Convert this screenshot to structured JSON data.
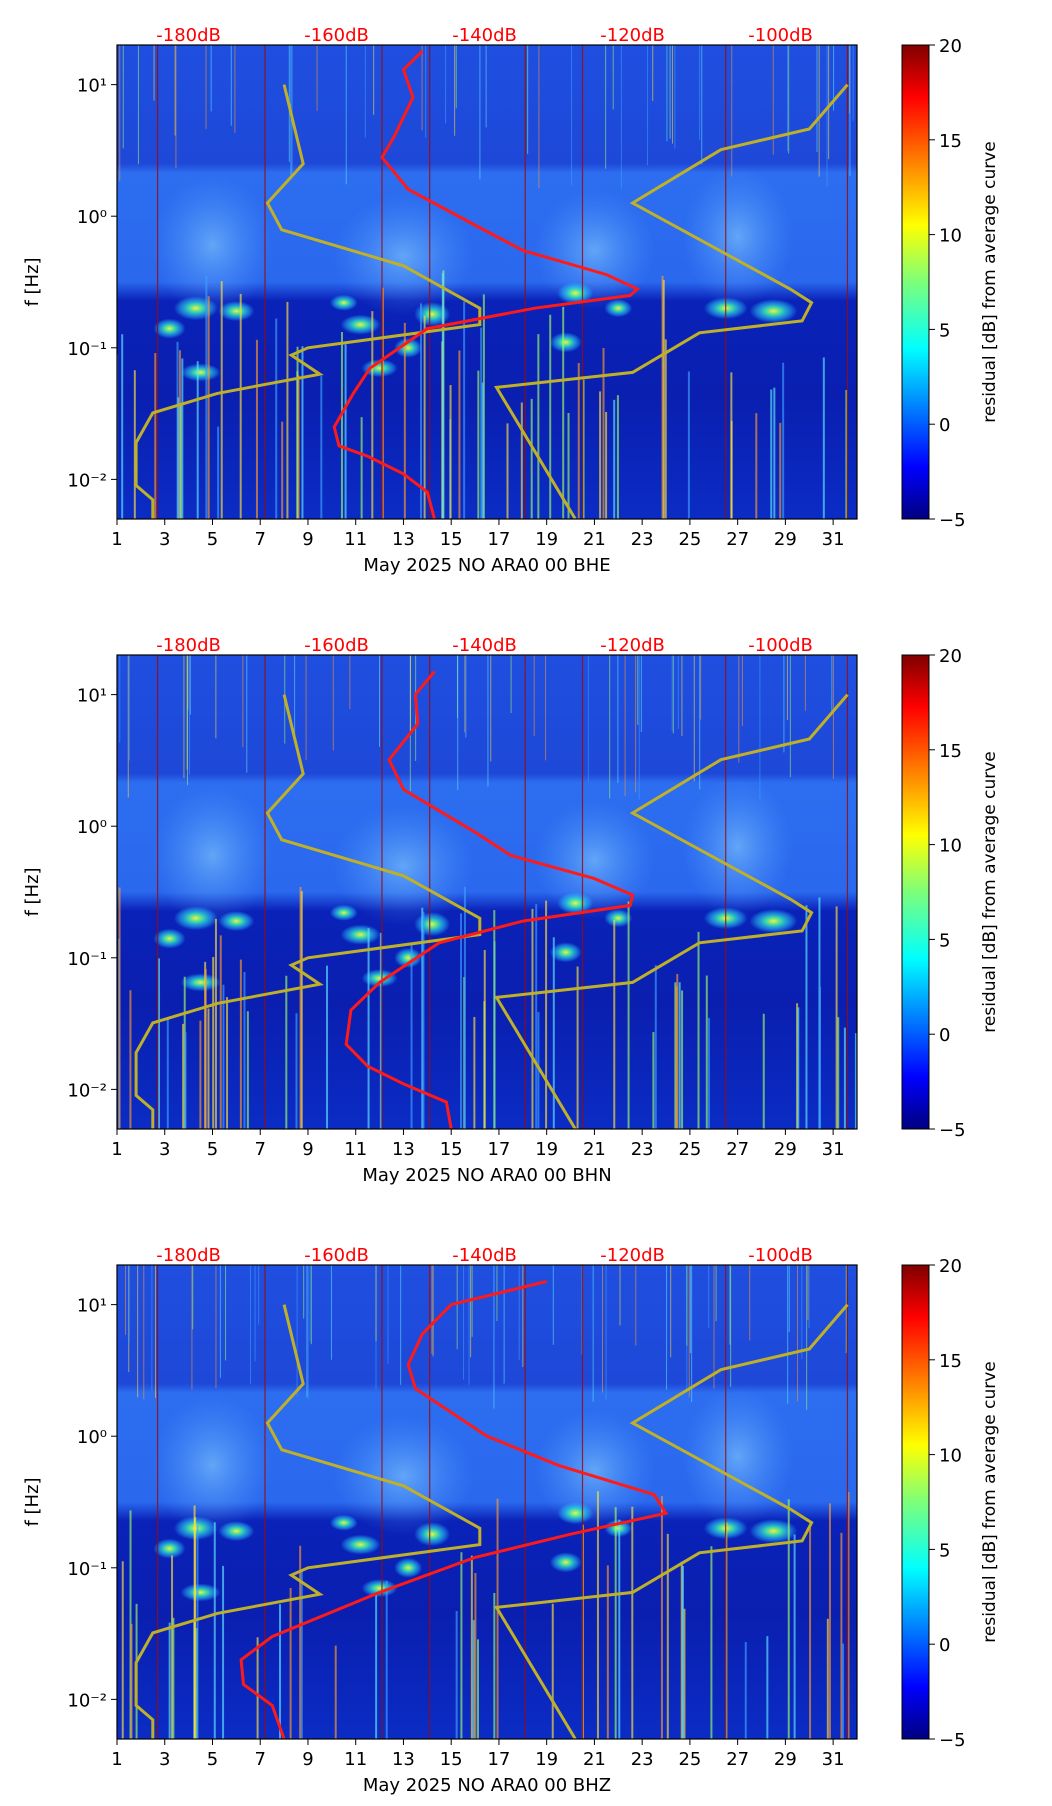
{
  "colors": {
    "db_scale": "#ff0000",
    "average_curve": "#ff1a1a",
    "reference_model": "#bfb02a",
    "colormap": "jet"
  },
  "colorbar": {
    "label": "residual [dB] from average curve",
    "min": -5,
    "max": 20,
    "ticks": [
      -5,
      0,
      5,
      10,
      15,
      20
    ],
    "tick_labels": [
      "−5",
      "0",
      "5",
      "10",
      "15",
      "20"
    ]
  },
  "chart_data": [
    {
      "type": "heatmap",
      "panel": "BHE",
      "xlabel": "May 2025 NO ARA0 00 BHE",
      "ylabel": "f [Hz]",
      "x_ticks": [
        1,
        3,
        5,
        7,
        9,
        11,
        13,
        15,
        17,
        19,
        21,
        23,
        25,
        27,
        29,
        31
      ],
      "x_tick_labels": [
        "1",
        "3",
        "5",
        "7",
        "9",
        "11",
        "13",
        "15",
        "17",
        "19",
        "21",
        "23",
        "25",
        "27",
        "29",
        "31"
      ],
      "xlim": [
        1,
        32
      ],
      "ylim_hz": [
        0.005,
        20
      ],
      "y_scale": "log",
      "y_ticks": [
        0.01,
        0.1,
        1,
        10
      ],
      "y_tick_labels": [
        "10⁻²",
        "10⁻¹",
        "10⁰",
        "10¹"
      ],
      "db_scale_labels": [
        "-180dB",
        "-160dB",
        "-140dB",
        "-120dB",
        "-100dB"
      ],
      "db_scale_days": [
        4.0,
        10.2,
        16.4,
        22.6,
        28.8
      ],
      "average_psd_curve": [
        {
          "day": 14.3,
          "f": 0.005
        },
        {
          "day": 14.0,
          "f": 0.008
        },
        {
          "day": 13.0,
          "f": 0.011
        },
        {
          "day": 11.5,
          "f": 0.015
        },
        {
          "day": 10.3,
          "f": 0.018
        },
        {
          "day": 10.1,
          "f": 0.025
        },
        {
          "day": 10.9,
          "f": 0.045
        },
        {
          "day": 11.6,
          "f": 0.07
        },
        {
          "day": 14.0,
          "f": 0.14
        },
        {
          "day": 18.5,
          "f": 0.2
        },
        {
          "day": 22.5,
          "f": 0.25
        },
        {
          "day": 22.8,
          "f": 0.28
        },
        {
          "day": 21.5,
          "f": 0.36
        },
        {
          "day": 18.0,
          "f": 0.55
        },
        {
          "day": 16.3,
          "f": 0.8
        },
        {
          "day": 13.2,
          "f": 1.6
        },
        {
          "day": 12.1,
          "f": 2.8
        },
        {
          "day": 12.6,
          "f": 4.0
        },
        {
          "day": 13.4,
          "f": 8.0
        },
        {
          "day": 13.0,
          "f": 13.0
        },
        {
          "day": 13.8,
          "f": 18.0
        }
      ]
    },
    {
      "type": "heatmap",
      "panel": "BHN",
      "xlabel": "May 2025 NO ARA0 00 BHN",
      "ylabel": "f [Hz]",
      "x_ticks": [
        1,
        3,
        5,
        7,
        9,
        11,
        13,
        15,
        17,
        19,
        21,
        23,
        25,
        27,
        29,
        31
      ],
      "x_tick_labels": [
        "1",
        "3",
        "5",
        "7",
        "9",
        "11",
        "13",
        "15",
        "17",
        "19",
        "21",
        "23",
        "25",
        "27",
        "29",
        "31"
      ],
      "xlim": [
        1,
        32
      ],
      "ylim_hz": [
        0.005,
        20
      ],
      "y_scale": "log",
      "y_ticks": [
        0.01,
        0.1,
        1,
        10
      ],
      "y_tick_labels": [
        "10⁻²",
        "10⁻¹",
        "10⁰",
        "10¹"
      ],
      "db_scale_labels": [
        "-180dB",
        "-160dB",
        "-140dB",
        "-120dB",
        "-100dB"
      ],
      "db_scale_days": [
        4.0,
        10.2,
        16.4,
        22.6,
        28.8
      ],
      "average_psd_curve": [
        {
          "day": 15.0,
          "f": 0.005
        },
        {
          "day": 14.8,
          "f": 0.008
        },
        {
          "day": 13.0,
          "f": 0.011
        },
        {
          "day": 11.5,
          "f": 0.015
        },
        {
          "day": 10.6,
          "f": 0.022
        },
        {
          "day": 10.8,
          "f": 0.04
        },
        {
          "day": 12.0,
          "f": 0.065
        },
        {
          "day": 14.5,
          "f": 0.13
        },
        {
          "day": 18.0,
          "f": 0.19
        },
        {
          "day": 22.5,
          "f": 0.25
        },
        {
          "day": 22.6,
          "f": 0.3
        },
        {
          "day": 21.0,
          "f": 0.4
        },
        {
          "day": 17.5,
          "f": 0.6
        },
        {
          "day": 16.0,
          "f": 0.9
        },
        {
          "day": 13.0,
          "f": 1.9
        },
        {
          "day": 12.4,
          "f": 3.2
        },
        {
          "day": 13.6,
          "f": 6.0
        },
        {
          "day": 13.5,
          "f": 10.0
        },
        {
          "day": 14.3,
          "f": 15.0
        }
      ]
    },
    {
      "type": "heatmap",
      "panel": "BHZ",
      "xlabel": "May 2025 NO ARA0 00 BHZ",
      "ylabel": "f [Hz]",
      "x_ticks": [
        1,
        3,
        5,
        7,
        9,
        11,
        13,
        15,
        17,
        19,
        21,
        23,
        25,
        27,
        29,
        31
      ],
      "x_tick_labels": [
        "1",
        "3",
        "5",
        "7",
        "9",
        "11",
        "13",
        "15",
        "17",
        "19",
        "21",
        "23",
        "25",
        "27",
        "29",
        "31"
      ],
      "xlim": [
        1,
        32
      ],
      "ylim_hz": [
        0.005,
        20
      ],
      "y_scale": "log",
      "y_ticks": [
        0.01,
        0.1,
        1,
        10
      ],
      "y_tick_labels": [
        "10⁻²",
        "10⁻¹",
        "10⁰",
        "10¹"
      ],
      "db_scale_labels": [
        "-180dB",
        "-160dB",
        "-140dB",
        "-120dB",
        "-100dB"
      ],
      "db_scale_days": [
        4.0,
        10.2,
        16.4,
        22.6,
        28.8
      ],
      "average_psd_curve": [
        {
          "day": 8.0,
          "f": 0.005
        },
        {
          "day": 7.5,
          "f": 0.009
        },
        {
          "day": 6.3,
          "f": 0.013
        },
        {
          "day": 6.2,
          "f": 0.02
        },
        {
          "day": 7.5,
          "f": 0.03
        },
        {
          "day": 12.0,
          "f": 0.065
        },
        {
          "day": 16.0,
          "f": 0.12
        },
        {
          "day": 20.0,
          "f": 0.18
        },
        {
          "day": 24.0,
          "f": 0.26
        },
        {
          "day": 23.5,
          "f": 0.36
        },
        {
          "day": 19.5,
          "f": 0.6
        },
        {
          "day": 16.5,
          "f": 1.0
        },
        {
          "day": 13.5,
          "f": 2.3
        },
        {
          "day": 13.2,
          "f": 3.5
        },
        {
          "day": 13.8,
          "f": 6.0
        },
        {
          "day": 15.0,
          "f": 10.0
        },
        {
          "day": 19.0,
          "f": 15.0
        }
      ]
    }
  ],
  "reference_models": {
    "low_noise_model": [
      {
        "day": 2.5,
        "f": 0.005
      },
      {
        "day": 2.5,
        "f": 0.007
      },
      {
        "day": 1.8,
        "f": 0.009
      },
      {
        "day": 1.8,
        "f": 0.019
      },
      {
        "day": 2.5,
        "f": 0.032
      },
      {
        "day": 5.2,
        "f": 0.045
      },
      {
        "day": 9.5,
        "f": 0.063
      },
      {
        "day": 8.3,
        "f": 0.088
      },
      {
        "day": 9.0,
        "f": 0.1
      },
      {
        "day": 16.2,
        "f": 0.15
      },
      {
        "day": 16.2,
        "f": 0.2
      },
      {
        "day": 13.0,
        "f": 0.42
      },
      {
        "day": 7.9,
        "f": 0.79
      },
      {
        "day": 7.3,
        "f": 1.26
      },
      {
        "day": 8.8,
        "f": 2.5
      },
      {
        "day": 8.0,
        "f": 10.0
      }
    ],
    "high_noise_model": [
      {
        "day": 20.2,
        "f": 0.005
      },
      {
        "day": 16.9,
        "f": 0.05
      },
      {
        "day": 22.6,
        "f": 0.065
      },
      {
        "day": 25.4,
        "f": 0.13
      },
      {
        "day": 29.7,
        "f": 0.16
      },
      {
        "day": 30.1,
        "f": 0.22
      },
      {
        "day": 29.2,
        "f": 0.28
      },
      {
        "day": 22.6,
        "f": 1.26
      },
      {
        "day": 26.3,
        "f": 3.2
      },
      {
        "day": 30.0,
        "f": 4.6
      },
      {
        "day": 31.6,
        "f": 10.0
      }
    ]
  }
}
